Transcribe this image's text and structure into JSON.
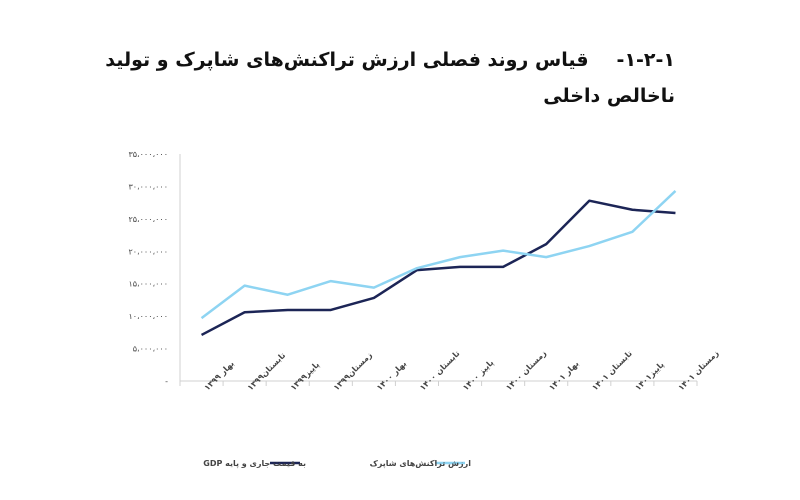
{
  "chart_data": {
    "type": "line",
    "section_number": "۱-۲-۱-",
    "title": "قیاس روند فصلی ارزش تراکنش‌های شاپرک و تولید ناخالص داخلی",
    "categories": [
      "بهار ۱۳۹۹",
      "تابستان۱۳۹۹",
      "پاییز۱۳۹۹",
      "زمستان۱۳۹۹",
      "بهار ۱۴۰۰",
      "تابستان ۱۴۰۰",
      "پاییز ۱۴۰۰",
      "زمستان ۱۴۰۰",
      "بهار ۱۴۰۱",
      "تابستان ۱۴۰۱",
      "پاییز۱۴۰۱",
      "زمستان ۱۴۰۱"
    ],
    "series": [
      {
        "name": "GDP به قیمت جاری و پایه",
        "color": "#1c2556",
        "values": [
          7100000,
          10600000,
          10950000,
          10950000,
          12800000,
          17100000,
          17600000,
          17600000,
          21100000,
          27800000,
          26400000,
          25900000
        ]
      },
      {
        "name": "ارزش تراکنش‌های شاپرک",
        "color": "#8ed4f2",
        "values": [
          9700000,
          14700000,
          13300000,
          15400000,
          14400000,
          17400000,
          19100000,
          20100000,
          19100000,
          20800000,
          23000000,
          29300000
        ]
      }
    ],
    "ylim": [
      0,
      35000000
    ],
    "yticks": [
      {
        "value": 0,
        "label": "-"
      },
      {
        "value": 5000000,
        "label": "۵،۰۰۰،۰۰۰"
      },
      {
        "value": 10000000,
        "label": "۱۰،۰۰۰،۰۰۰"
      },
      {
        "value": 15000000,
        "label": "۱۵،۰۰۰،۰۰۰"
      },
      {
        "value": 20000000,
        "label": "۲۰،۰۰۰،۰۰۰"
      },
      {
        "value": 25000000,
        "label": "۲۵،۰۰۰،۰۰۰"
      },
      {
        "value": 30000000,
        "label": "۳۰،۰۰۰،۰۰۰"
      },
      {
        "value": 35000000,
        "label": "۳۵،۰۰۰،۰۰۰"
      }
    ],
    "grid": false,
    "legend": "bottom"
  }
}
